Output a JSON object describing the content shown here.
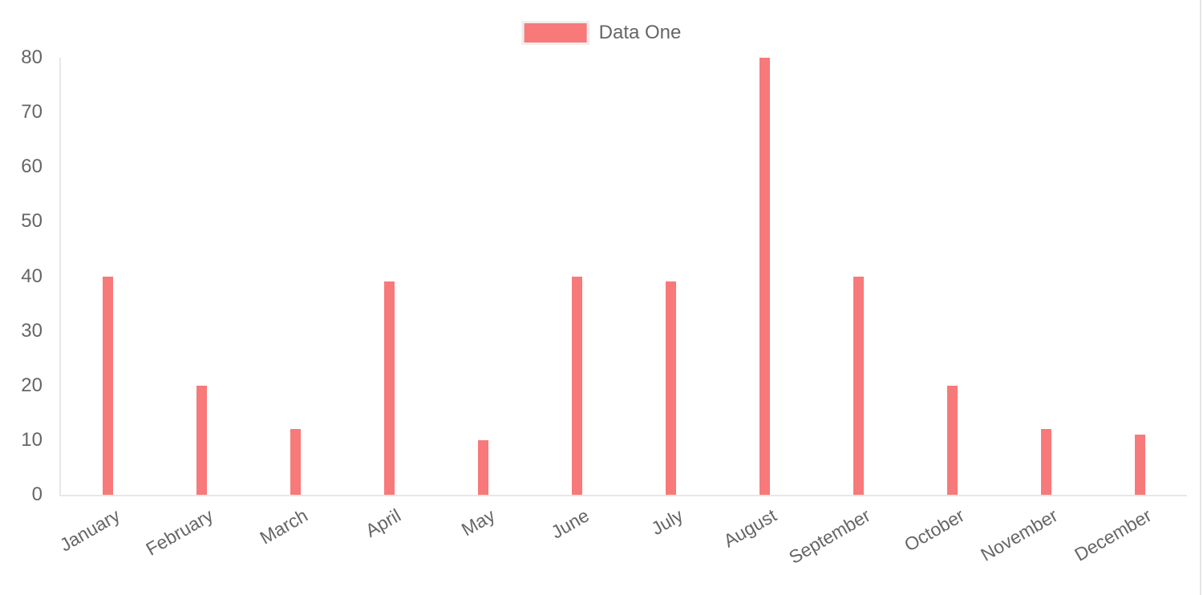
{
  "chart_data": {
    "type": "bar",
    "title": "",
    "categories": [
      "January",
      "February",
      "March",
      "April",
      "May",
      "June",
      "July",
      "August",
      "September",
      "October",
      "November",
      "December"
    ],
    "series": [
      {
        "name": "Data One",
        "values": [
          40,
          20,
          12,
          39,
          10,
          40,
          39,
          80,
          40,
          20,
          12,
          11
        ],
        "color": "#f87979"
      }
    ],
    "xlabel": "",
    "ylabel": "",
    "ylim": [
      0,
      80
    ],
    "y_ticks": [
      0,
      10,
      20,
      30,
      40,
      50,
      60,
      70,
      80
    ],
    "grid": "off",
    "legend_position": "top"
  },
  "legend": {
    "label": "Data One",
    "swatch_color": "#f87979"
  },
  "colors": {
    "bar": "#f87979",
    "axis_line": "#e7e7e7",
    "tick_text": "#666666"
  }
}
